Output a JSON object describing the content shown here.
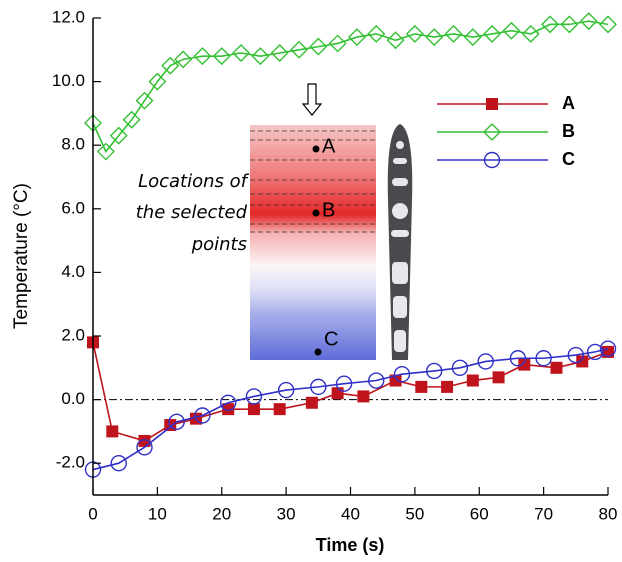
{
  "chart_data": {
    "type": "line",
    "xlabel": "Time (s)",
    "ylabel": "Temperature (°C)",
    "xlim": [
      0,
      80
    ],
    "xticks": [
      0,
      10,
      20,
      30,
      40,
      50,
      60,
      70,
      80
    ],
    "ylim": [
      -3,
      12
    ],
    "yticks": [
      {
        "value": -2,
        "label": "-2.0"
      },
      {
        "value": 0,
        "label": "0.0"
      },
      {
        "value": 2,
        "label": "2.0"
      },
      {
        "value": 4,
        "label": "4.0"
      },
      {
        "value": 6,
        "label": "6.0"
      },
      {
        "value": 8,
        "label": "8.0"
      },
      {
        "value": 10,
        "label": "10.0"
      },
      {
        "value": 12,
        "label": "12.0"
      }
    ],
    "reference_line": 0,
    "legend": "upper right",
    "series": [
      {
        "name": "A",
        "color": "#c0141c",
        "marker": "square",
        "x": [
          0,
          3,
          8,
          12,
          16,
          21,
          25,
          29,
          34,
          38,
          42,
          47,
          51,
          55,
          59,
          63,
          67,
          72,
          76,
          80
        ],
        "values": [
          1.8,
          -1.0,
          -1.3,
          -0.8,
          -0.6,
          -0.3,
          -0.3,
          -0.3,
          -0.1,
          0.2,
          0.1,
          0.6,
          0.4,
          0.4,
          0.6,
          0.7,
          1.1,
          1.0,
          1.2,
          1.5
        ]
      },
      {
        "name": "B",
        "color": "#33c133",
        "marker": "diamond",
        "x": [
          0,
          2,
          4,
          6,
          8,
          10,
          12,
          14,
          17,
          20,
          23,
          26,
          29,
          32,
          35,
          38,
          41,
          44,
          47,
          50,
          53,
          56,
          59,
          62,
          65,
          68,
          71,
          74,
          77,
          80
        ],
        "values": [
          8.7,
          7.8,
          8.3,
          8.8,
          9.4,
          10.0,
          10.5,
          10.7,
          10.8,
          10.8,
          10.9,
          10.8,
          10.9,
          11.0,
          11.1,
          11.2,
          11.4,
          11.5,
          11.3,
          11.5,
          11.4,
          11.5,
          11.4,
          11.5,
          11.6,
          11.5,
          11.8,
          11.8,
          11.9,
          11.8
        ]
      },
      {
        "name": "C",
        "color": "#3030c8",
        "marker": "circle",
        "x": [
          0,
          4,
          8,
          13,
          17,
          21,
          25,
          30,
          35,
          39,
          44,
          48,
          53,
          57,
          61,
          66,
          70,
          75,
          78,
          80
        ],
        "values": [
          -2.2,
          -2.0,
          -1.5,
          -0.7,
          -0.5,
          -0.1,
          0.1,
          0.3,
          0.4,
          0.5,
          0.6,
          0.8,
          0.9,
          1.0,
          1.2,
          1.3,
          1.3,
          1.4,
          1.5,
          1.6
        ]
      }
    ],
    "annotation": [
      "Locations of",
      "the selected",
      "points"
    ],
    "inset_labels": [
      "A",
      "B",
      "C"
    ]
  }
}
